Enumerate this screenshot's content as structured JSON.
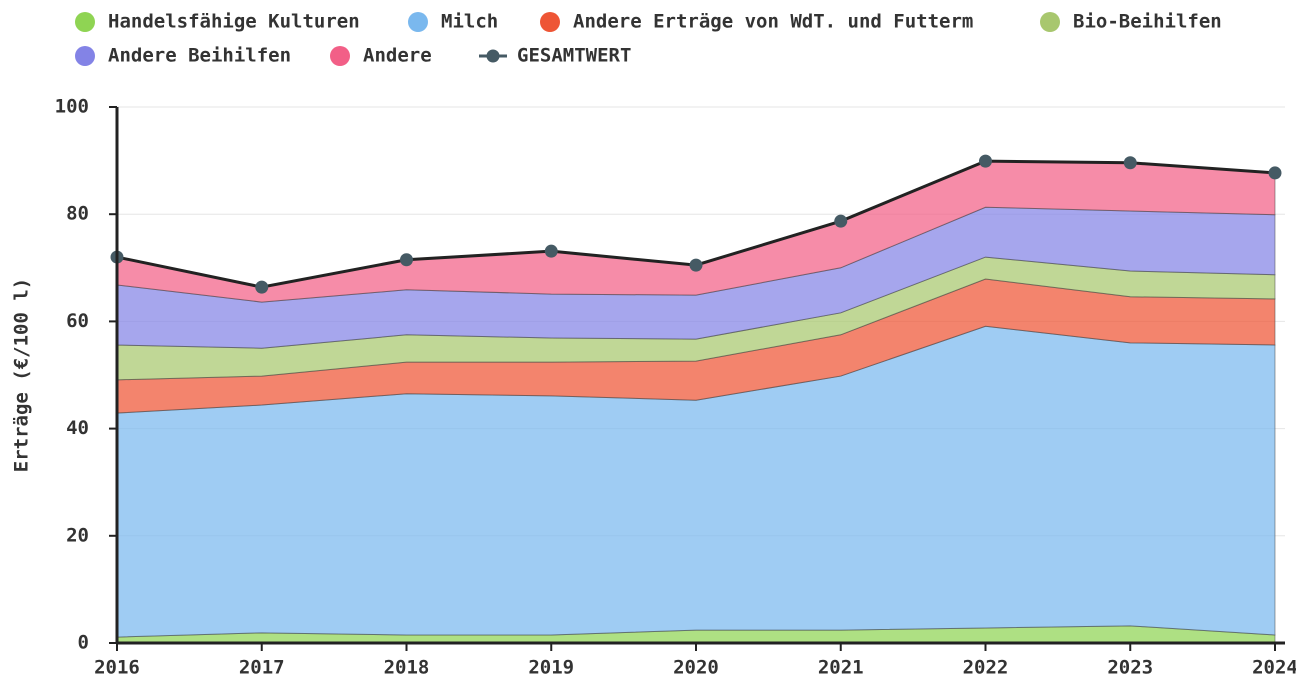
{
  "chart_data": {
    "type": "stacked-area",
    "y_label": "Erträge (€/100 l)",
    "x": [
      2016,
      2017,
      2018,
      2019,
      2020,
      2021,
      2022,
      2023,
      2024
    ],
    "xlim": [
      2016,
      2024
    ],
    "xticks": [
      2016,
      2017,
      2018,
      2019,
      2020,
      2021,
      2022,
      2023,
      2024
    ],
    "ylim": [
      0,
      100
    ],
    "yticks": [
      0,
      20,
      40,
      60,
      80,
      100
    ],
    "grid": true,
    "series": [
      {
        "name": "Handelsfähige Kulturen",
        "color": "#8fd453",
        "values": [
          1.1,
          1.9,
          1.5,
          1.5,
          2.4,
          2.4,
          2.8,
          3.2,
          1.5
        ]
      },
      {
        "name": "Milch",
        "color": "#7ab8ee",
        "values": [
          41.8,
          42.5,
          45.0,
          44.6,
          42.9,
          47.4,
          56.3,
          52.8,
          54.1
        ]
      },
      {
        "name": "Andere Erträge von WdT. und Futterm",
        "color": "#ee5535",
        "values": [
          6.2,
          5.4,
          5.9,
          6.3,
          7.3,
          7.7,
          8.8,
          8.6,
          8.6
        ]
      },
      {
        "name": "Bio-Beihilfen",
        "color": "#a8c76e",
        "values": [
          6.5,
          5.2,
          5.1,
          4.5,
          4.1,
          4.1,
          4.1,
          4.8,
          4.5
        ]
      },
      {
        "name": "Andere Beihilfen",
        "color": "#8383e6",
        "values": [
          11.2,
          8.6,
          8.4,
          8.2,
          8.2,
          8.4,
          9.3,
          11.2,
          11.2
        ]
      },
      {
        "name": "Andere",
        "color": "#f25f87",
        "values": [
          5.2,
          2.8,
          5.6,
          8.0,
          5.6,
          8.7,
          8.6,
          9.0,
          7.8
        ]
      }
    ],
    "total": {
      "name": "GESAMTWERT",
      "color": "#455a64",
      "values": [
        72.0,
        66.4,
        71.5,
        73.1,
        70.5,
        78.7,
        89.9,
        89.6,
        87.7
      ]
    }
  }
}
